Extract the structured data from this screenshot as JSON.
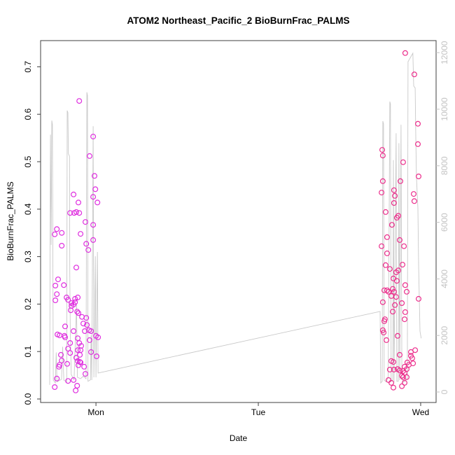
{
  "page": {
    "background": "#ffffff"
  },
  "header": {
    "title": "ATOM2 Northeast_Pacific_2 BioBurnFrac_PALMS"
  },
  "chart_data": {
    "type": "scatter",
    "title": "ATOM2 Northeast_Pacific_2 BioBurnFrac_PALMS",
    "xlabel": "Date",
    "ylabel": "BioBurnFrac_PALMS",
    "grid": false,
    "legend": null,
    "x_axis": {
      "tick_labels": [
        "Mon",
        "Tue",
        "Wed"
      ],
      "tick_positions": [
        0,
        1,
        2
      ],
      "xlim": [
        -0.341,
        2.095
      ]
    },
    "y_axis_left": {
      "tick_labels": [
        "0.0",
        "0.1",
        "0.2",
        "0.3",
        "0.4",
        "0.5",
        "0.6",
        "0.7"
      ],
      "tick_values": [
        0.0,
        0.1,
        0.2,
        0.3,
        0.4,
        0.5,
        0.6,
        0.7
      ],
      "ylim": [
        -0.0074,
        0.7552
      ],
      "label": "BioBurnFrac_PALMS"
    },
    "y_axis_right": {
      "tick_labels": [
        "0",
        "2000",
        "4000",
        "6000",
        "8000",
        "10000",
        "12000"
      ],
      "tick_values": [
        0,
        2000,
        4000,
        6000,
        8000,
        10000,
        12000
      ],
      "ylim": [
        -371,
        12426
      ]
    },
    "colors": {
      "track_line": "#c9c9c9",
      "day1_points": "#DF2EDF",
      "day2_points": "#EC2E8C",
      "right_axis": "#c3c3c3",
      "axis": "#404040",
      "text": "#000000"
    },
    "series": [
      {
        "name": "track-line",
        "type": "line",
        "axis": "right",
        "points": [
          [
            -0.285,
            250
          ],
          [
            -0.28,
            9100
          ],
          [
            -0.276,
            5200
          ],
          [
            -0.272,
            9600
          ],
          [
            -0.268,
            9450
          ],
          [
            -0.263,
            420
          ],
          [
            -0.25,
            320
          ],
          [
            -0.245,
            1400
          ],
          [
            -0.24,
            360
          ],
          [
            -0.212,
            450
          ],
          [
            -0.205,
            1600
          ],
          [
            -0.198,
            420
          ],
          [
            -0.18,
            360
          ],
          [
            -0.177,
            9950
          ],
          [
            -0.173,
            9880
          ],
          [
            -0.17,
            8420
          ],
          [
            -0.163,
            8340
          ],
          [
            -0.161,
            4200
          ],
          [
            -0.158,
            2200
          ],
          [
            -0.152,
            620
          ],
          [
            -0.135,
            420
          ],
          [
            -0.12,
            3100
          ],
          [
            -0.114,
            520
          ],
          [
            -0.095,
            470
          ],
          [
            -0.078,
            560
          ],
          [
            -0.061,
            470
          ],
          [
            -0.056,
            10600
          ],
          [
            -0.052,
            10480
          ],
          [
            -0.049,
            380
          ],
          [
            -0.034,
            430
          ],
          [
            -0.03,
            2000
          ],
          [
            -0.026,
            420
          ],
          [
            -0.017,
            9400
          ],
          [
            -0.013,
            520
          ],
          [
            -0.004,
            4800
          ],
          [
            0.0,
            520
          ],
          [
            0.009,
            4950
          ],
          [
            0.013,
            670
          ],
          [
            1.75,
            2850
          ],
          [
            1.754,
            320
          ],
          [
            1.763,
            380
          ],
          [
            1.767,
            9580
          ],
          [
            1.771,
            9480
          ],
          [
            1.775,
            420
          ],
          [
            1.788,
            360
          ],
          [
            1.8,
            520
          ],
          [
            1.81,
            10270
          ],
          [
            1.814,
            10180
          ],
          [
            1.818,
            380
          ],
          [
            1.828,
            420
          ],
          [
            1.832,
            8200
          ],
          [
            1.836,
            340
          ],
          [
            1.849,
            9150
          ],
          [
            1.853,
            380
          ],
          [
            1.862,
            380
          ],
          [
            1.866,
            8800
          ],
          [
            1.871,
            420
          ],
          [
            1.879,
            9450
          ],
          [
            1.884,
            540
          ],
          [
            1.892,
            340
          ],
          [
            1.901,
            380
          ],
          [
            1.91,
            430
          ],
          [
            1.918,
            480
          ],
          [
            1.922,
            11680
          ],
          [
            1.952,
            11980
          ],
          [
            1.957,
            10820
          ],
          [
            1.966,
            10750
          ],
          [
            1.97,
            9000
          ],
          [
            1.974,
            7620
          ],
          [
            1.983,
            6500
          ],
          [
            1.987,
            4500
          ],
          [
            1.996,
            2150
          ],
          [
            2.003,
            1900
          ]
        ]
      },
      {
        "name": "day1-points",
        "type": "scatter",
        "axis": "left",
        "points": [
          [
            -0.103,
            0.628
          ],
          [
            -0.017,
            0.553
          ],
          [
            -0.039,
            0.512
          ],
          [
            -0.009,
            0.47
          ],
          [
            -0.004,
            0.442
          ],
          [
            -0.017,
            0.426
          ],
          [
            0.009,
            0.414
          ],
          [
            -0.138,
            0.431
          ],
          [
            -0.108,
            0.414
          ],
          [
            -0.134,
            0.392
          ],
          [
            -0.103,
            0.392
          ],
          [
            -0.065,
            0.373
          ],
          [
            -0.159,
            0.392
          ],
          [
            -0.121,
            0.394
          ],
          [
            -0.017,
            0.367
          ],
          [
            -0.241,
            0.358
          ],
          [
            -0.254,
            0.347
          ],
          [
            -0.211,
            0.35
          ],
          [
            -0.095,
            0.348
          ],
          [
            -0.017,
            0.335
          ],
          [
            -0.211,
            0.323
          ],
          [
            -0.06,
            0.327
          ],
          [
            -0.047,
            0.314
          ],
          [
            -0.121,
            0.277
          ],
          [
            -0.233,
            0.252
          ],
          [
            -0.25,
            0.239
          ],
          [
            -0.198,
            0.24
          ],
          [
            -0.241,
            0.221
          ],
          [
            -0.25,
            0.208
          ],
          [
            -0.181,
            0.214
          ],
          [
            -0.172,
            0.209
          ],
          [
            -0.129,
            0.211
          ],
          [
            -0.112,
            0.214
          ],
          [
            -0.151,
            0.196
          ],
          [
            -0.138,
            0.199
          ],
          [
            -0.116,
            0.184
          ],
          [
            -0.108,
            0.181
          ],
          [
            -0.086,
            0.173
          ],
          [
            -0.056,
            0.156
          ],
          [
            -0.043,
            0.145
          ],
          [
            -0.03,
            0.143
          ],
          [
            -0.069,
            0.143
          ],
          [
            -0.237,
            0.136
          ],
          [
            -0.224,
            0.134
          ],
          [
            -0.194,
            0.133
          ],
          [
            -0.112,
            0.128
          ],
          [
            -0.039,
            0.124
          ],
          [
            0.0,
            0.133
          ],
          [
            0.013,
            0.13
          ],
          [
            -0.159,
            0.118
          ],
          [
            -0.172,
            0.106
          ],
          [
            -0.112,
            0.103
          ],
          [
            -0.095,
            0.103
          ],
          [
            -0.216,
            0.093
          ],
          [
            -0.159,
            0.097
          ],
          [
            -0.121,
            0.087
          ],
          [
            -0.03,
            0.099
          ],
          [
            0.004,
            0.09
          ],
          [
            -0.211,
            0.081
          ],
          [
            -0.224,
            0.072
          ],
          [
            -0.228,
            0.068
          ],
          [
            -0.177,
            0.074
          ],
          [
            -0.112,
            0.08
          ],
          [
            -0.095,
            0.077
          ],
          [
            -0.073,
            0.068
          ],
          [
            -0.065,
            0.053
          ],
          [
            -0.241,
            0.043
          ],
          [
            -0.172,
            0.038
          ],
          [
            -0.138,
            0.04
          ],
          [
            -0.116,
            0.028
          ],
          [
            -0.254,
            0.025
          ],
          [
            -0.125,
            0.018
          ],
          [
            -0.151,
            0.202
          ],
          [
            -0.129,
            0.204
          ],
          [
            -0.155,
            0.187
          ],
          [
            -0.06,
            0.171
          ],
          [
            -0.078,
            0.159
          ],
          [
            -0.19,
            0.153
          ],
          [
            -0.138,
            0.143
          ],
          [
            -0.19,
            0.13
          ],
          [
            -0.103,
            0.118
          ],
          [
            -0.091,
            0.112
          ],
          [
            -0.099,
            0.093
          ],
          [
            -0.099,
            0.078
          ],
          [
            -0.108,
            0.071
          ]
        ]
      },
      {
        "name": "day2-points",
        "type": "scatter",
        "axis": "left",
        "points": [
          [
            1.905,
            0.729
          ],
          [
            1.961,
            0.684
          ],
          [
            1.983,
            0.58
          ],
          [
            1.983,
            0.537
          ],
          [
            1.763,
            0.525
          ],
          [
            1.767,
            0.513
          ],
          [
            1.892,
            0.499
          ],
          [
            1.767,
            0.459
          ],
          [
            1.875,
            0.459
          ],
          [
            1.759,
            0.435
          ],
          [
            1.987,
            0.469
          ],
          [
            1.957,
            0.432
          ],
          [
            1.961,
            0.417
          ],
          [
            1.836,
            0.44
          ],
          [
            1.841,
            0.428
          ],
          [
            1.836,
            0.413
          ],
          [
            1.784,
            0.394
          ],
          [
            1.862,
            0.386
          ],
          [
            1.853,
            0.382
          ],
          [
            1.823,
            0.367
          ],
          [
            1.793,
            0.341
          ],
          [
            1.871,
            0.335
          ],
          [
            1.759,
            0.322
          ],
          [
            1.897,
            0.322
          ],
          [
            1.793,
            0.307
          ],
          [
            1.784,
            0.282
          ],
          [
            1.81,
            0.274
          ],
          [
            1.888,
            0.283
          ],
          [
            1.849,
            0.267
          ],
          [
            1.862,
            0.271
          ],
          [
            1.832,
            0.254
          ],
          [
            1.853,
            0.249
          ],
          [
            1.905,
            0.24
          ],
          [
            1.914,
            0.226
          ],
          [
            1.776,
            0.229
          ],
          [
            1.793,
            0.229
          ],
          [
            1.802,
            0.226
          ],
          [
            1.828,
            0.232
          ],
          [
            1.836,
            0.226
          ],
          [
            1.819,
            0.217
          ],
          [
            1.849,
            0.215
          ],
          [
            1.767,
            0.204
          ],
          [
            1.841,
            0.198
          ],
          [
            1.884,
            0.202
          ],
          [
            1.987,
            0.211
          ],
          [
            1.905,
            0.183
          ],
          [
            1.828,
            0.184
          ],
          [
            1.78,
            0.168
          ],
          [
            1.776,
            0.164
          ],
          [
            1.901,
            0.168
          ],
          [
            1.767,
            0.145
          ],
          [
            1.772,
            0.14
          ],
          [
            1.789,
            0.124
          ],
          [
            1.858,
            0.133
          ],
          [
            1.966,
            0.103
          ],
          [
            1.94,
            0.091
          ],
          [
            1.871,
            0.093
          ],
          [
            1.953,
            0.075
          ],
          [
            1.918,
            0.077
          ],
          [
            1.927,
            0.072
          ],
          [
            1.901,
            0.068
          ],
          [
            1.914,
            0.063
          ],
          [
            1.819,
            0.08
          ],
          [
            1.832,
            0.078
          ],
          [
            1.81,
            0.062
          ],
          [
            1.836,
            0.062
          ],
          [
            1.858,
            0.063
          ],
          [
            1.871,
            0.06
          ],
          [
            1.892,
            0.059
          ],
          [
            1.901,
            0.055
          ],
          [
            1.884,
            0.049
          ],
          [
            1.892,
            0.046
          ],
          [
            1.914,
            0.046
          ],
          [
            1.802,
            0.04
          ],
          [
            1.819,
            0.034
          ],
          [
            1.901,
            0.034
          ],
          [
            1.884,
            0.027
          ],
          [
            1.832,
            0.024
          ],
          [
            1.94,
            0.099
          ],
          [
            1.948,
            0.086
          ]
        ]
      }
    ]
  }
}
